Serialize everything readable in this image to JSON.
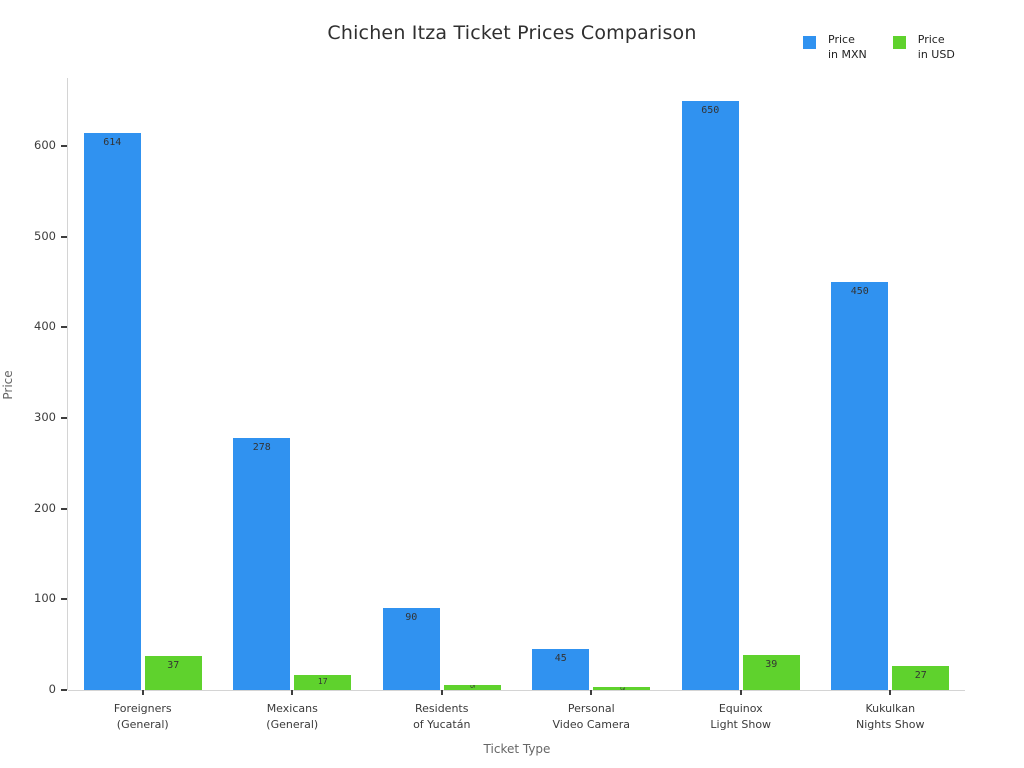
{
  "title": "Chichen Itza Ticket Prices Comparison",
  "chart_data": {
    "type": "bar",
    "categories": [
      "Foreigners\n(General)",
      "Mexicans\n(General)",
      "Residents\nof Yucatán",
      "Personal\nVideo Camera",
      "Equinox\nLight Show",
      "Kukulkan\nNights Show"
    ],
    "series": [
      {
        "name": "Price\nin MXN",
        "color": "#3092f0",
        "values": [
          614,
          278,
          90,
          45,
          650,
          450
        ]
      },
      {
        "name": "Price\nin USD",
        "color": "#5fd22d",
        "values": [
          37,
          17,
          5,
          3,
          39,
          27
        ]
      }
    ],
    "title": "Chichen Itza Ticket Prices Comparison",
    "xlabel": "Ticket Type",
    "ylabel": "Price",
    "ylim": [
      0,
      675
    ],
    "yticks": [
      0,
      100,
      200,
      300,
      400,
      500,
      600
    ],
    "grid": false,
    "legend_position": "top-right"
  }
}
